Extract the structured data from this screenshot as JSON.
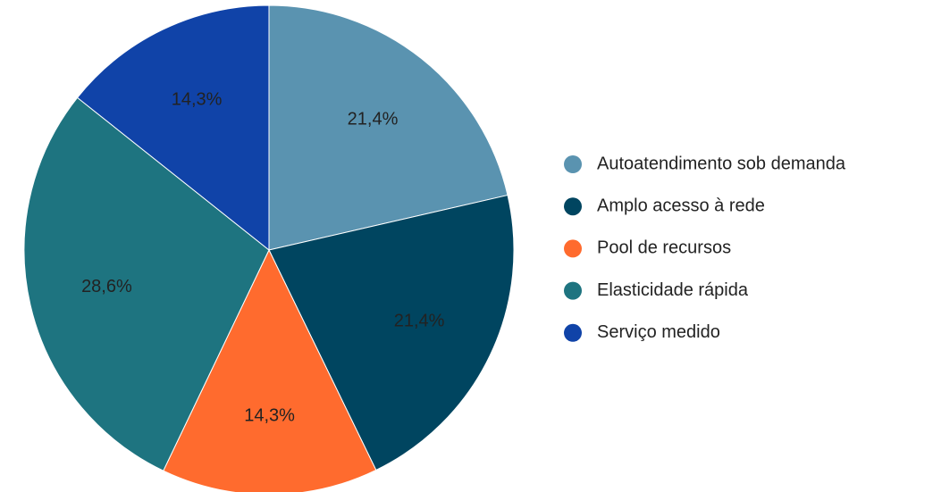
{
  "chart_data": {
    "type": "pie",
    "categories": [
      "Autoatendimento sob demanda",
      "Amplo acesso à rede",
      "Pool de recursos",
      "Elasticidade rápida",
      "Serviço medido"
    ],
    "values": [
      21.4,
      21.4,
      14.3,
      28.6,
      14.3
    ],
    "value_labels": [
      "21,4%",
      "21,4%",
      "14,3%",
      "28,6%",
      "14,3%"
    ],
    "colors": [
      "#5a93b0",
      "#004560",
      "#ff6b2e",
      "#1e7480",
      "#1043a8"
    ],
    "legend": "right"
  }
}
